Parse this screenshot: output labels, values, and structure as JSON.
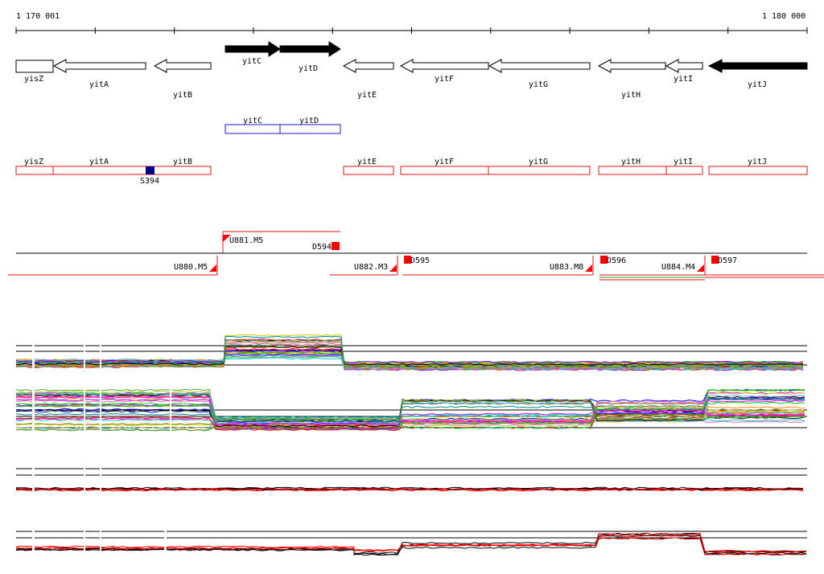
{
  "ruler": {
    "start_label": "1 170 001",
    "end_label": "1 180 000"
  },
  "genes": [
    {
      "name": "yisZ",
      "strand": "-",
      "filled": false
    },
    {
      "name": "yitA",
      "strand": "-",
      "filled": false
    },
    {
      "name": "yitB",
      "strand": "-",
      "filled": false
    },
    {
      "name": "yitC",
      "strand": "+",
      "filled": true
    },
    {
      "name": "yitD",
      "strand": "+",
      "filled": true
    },
    {
      "name": "yitE",
      "strand": "-",
      "filled": false
    },
    {
      "name": "yitF",
      "strand": "-",
      "filled": false
    },
    {
      "name": "yitG",
      "strand": "-",
      "filled": false
    },
    {
      "name": "yitH",
      "strand": "-",
      "filled": false
    },
    {
      "name": "yitI",
      "strand": "-",
      "filled": false
    },
    {
      "name": "yitJ",
      "strand": "-",
      "filled": true
    }
  ],
  "forward_operon": {
    "genes": [
      "yitC",
      "yitD"
    ],
    "color": "#1a1acc"
  },
  "reverse_operons": {
    "genes": [
      "yisZ",
      "yitA",
      "yitB",
      "yitE",
      "yitF",
      "yitG",
      "yitH",
      "yitI",
      "yitJ"
    ],
    "color": "#e01010"
  },
  "site_marker": {
    "label": "S394",
    "color": "#00008b"
  },
  "transcription_units": [
    {
      "label": "U881.M5"
    },
    {
      "label": "D594"
    },
    {
      "label": "U880.M5"
    },
    {
      "label": "U882.M3"
    },
    {
      "label": "D595"
    },
    {
      "label": "U883.M8"
    },
    {
      "label": "D596"
    },
    {
      "label": "U884.M4"
    },
    {
      "label": "D597"
    }
  ],
  "colors": {
    "forward": "#1a1acc",
    "reverse": "#e01010",
    "marker_fill": "#ff0000",
    "axis": "#000000"
  }
}
